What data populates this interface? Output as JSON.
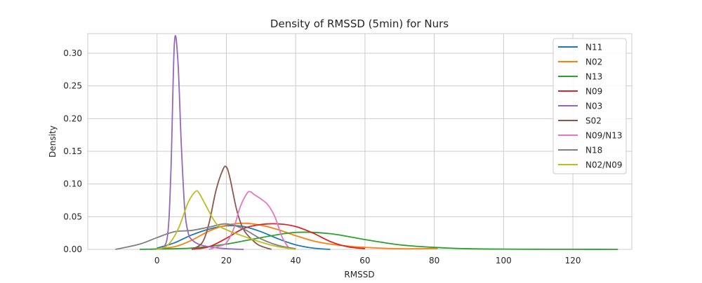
{
  "chart_data": {
    "type": "line",
    "title": "Density of RMSSD (5min) for Nurs",
    "xlabel": "RMSSD",
    "ylabel": "Density",
    "xlim": [
      -20,
      137
    ],
    "ylim": [
      0,
      0.33
    ],
    "xticks": [
      0,
      20,
      40,
      60,
      80,
      100,
      120
    ],
    "yticks": [
      0.0,
      0.05,
      0.1,
      0.15,
      0.2,
      0.25,
      0.3
    ],
    "xtick_labels": [
      "0",
      "20",
      "40",
      "60",
      "80",
      "100",
      "120"
    ],
    "ytick_labels": [
      "0.00",
      "0.05",
      "0.10",
      "0.15",
      "0.20",
      "0.25",
      "0.30"
    ],
    "grid": true,
    "legend_position": "top-right",
    "series": [
      {
        "name": "N11",
        "color": "#1f77b4",
        "x": [
          0,
          5,
          10,
          15,
          20,
          25,
          30,
          35,
          40,
          45,
          50
        ],
        "y": [
          0.002,
          0.01,
          0.022,
          0.031,
          0.036,
          0.035,
          0.027,
          0.016,
          0.007,
          0.002,
          0.0
        ]
      },
      {
        "name": "N02",
        "color": "#ff7f0e",
        "x": [
          -2,
          5,
          10,
          15,
          20,
          25,
          30,
          35,
          40,
          45,
          50,
          55,
          60,
          70,
          81
        ],
        "y": [
          0.0,
          0.004,
          0.014,
          0.028,
          0.037,
          0.04,
          0.037,
          0.03,
          0.021,
          0.013,
          0.008,
          0.005,
          0.003,
          0.001,
          0.0015
        ]
      },
      {
        "name": "N13",
        "color": "#2ca02c",
        "x": [
          -5,
          0,
          10,
          20,
          30,
          40,
          50,
          60,
          70,
          80,
          90,
          100,
          110,
          120,
          133
        ],
        "y": [
          0.0,
          0.0005,
          0.002,
          0.008,
          0.018,
          0.026,
          0.024,
          0.015,
          0.007,
          0.003,
          0.001,
          0.0004,
          0.0002,
          0.0001,
          0.0
        ]
      },
      {
        "name": "N09",
        "color": "#d62728",
        "x": [
          10,
          15,
          20,
          25,
          30,
          35,
          40,
          45,
          50,
          55,
          60
        ],
        "y": [
          0.0,
          0.004,
          0.017,
          0.032,
          0.038,
          0.039,
          0.035,
          0.025,
          0.012,
          0.004,
          0.001
        ]
      },
      {
        "name": "N03",
        "color": "#9467bd",
        "x": [
          1,
          3,
          4,
          5,
          6,
          7,
          8,
          9,
          10,
          12,
          15,
          20,
          25
        ],
        "y": [
          0.0,
          0.02,
          0.12,
          0.315,
          0.29,
          0.16,
          0.06,
          0.025,
          0.015,
          0.008,
          0.004,
          0.001,
          0.0
        ]
      },
      {
        "name": "S02",
        "color": "#8c564b",
        "x": [
          10,
          13,
          15,
          17,
          19,
          20,
          21,
          23,
          25,
          28,
          30,
          33
        ],
        "y": [
          0.0,
          0.01,
          0.04,
          0.09,
          0.122,
          0.126,
          0.11,
          0.06,
          0.03,
          0.012,
          0.005,
          0.0
        ]
      },
      {
        "name": "N09/N13",
        "color": "#e377c2",
        "x": [
          15,
          18,
          20,
          22,
          24,
          26,
          27,
          28,
          30,
          32,
          34,
          36,
          38
        ],
        "y": [
          0.0,
          0.005,
          0.01,
          0.03,
          0.065,
          0.086,
          0.088,
          0.084,
          0.077,
          0.068,
          0.05,
          0.02,
          0.002
        ]
      },
      {
        "name": "N18",
        "color": "#7f7f7f",
        "x": [
          -12,
          -5,
          0,
          5,
          10,
          15,
          20,
          25,
          30,
          35,
          40
        ],
        "y": [
          0.0,
          0.008,
          0.018,
          0.027,
          0.029,
          0.034,
          0.039,
          0.031,
          0.016,
          0.006,
          0.001
        ]
      },
      {
        "name": "N02/N09",
        "color": "#bcbd22",
        "x": [
          0,
          3,
          6,
          9,
          11,
          12,
          14,
          17,
          20,
          25,
          30,
          35,
          40
        ],
        "y": [
          0.0,
          0.006,
          0.03,
          0.072,
          0.088,
          0.087,
          0.068,
          0.04,
          0.03,
          0.02,
          0.011,
          0.004,
          0.0
        ]
      }
    ]
  }
}
